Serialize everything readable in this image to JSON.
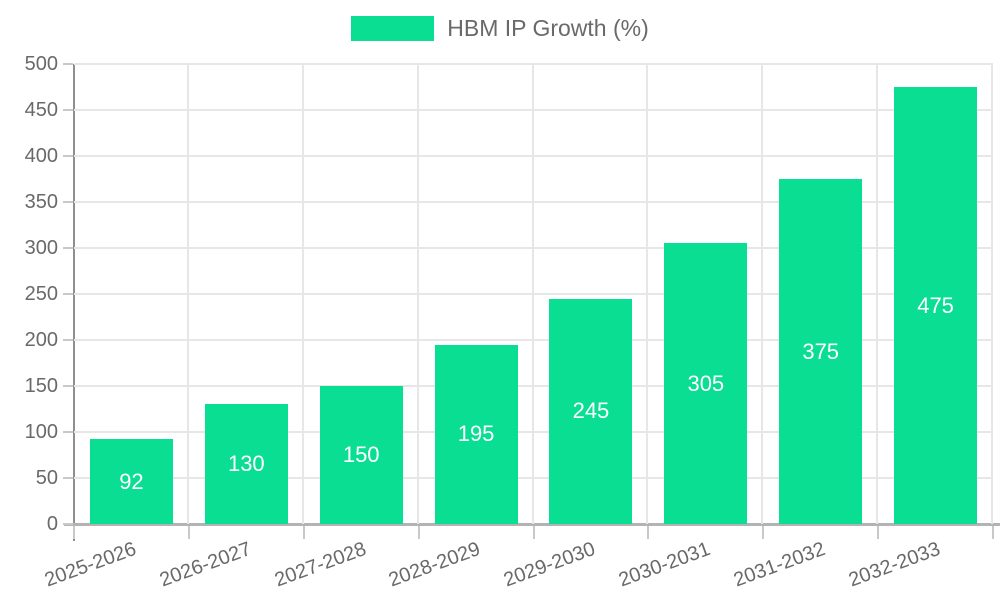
{
  "legend": {
    "label": "HBM IP Growth (%)"
  },
  "colors": {
    "bar": "#0ade93",
    "grid": "#e7e7e7",
    "y_axis_line": "#8f8f8f",
    "x_axis_line": "#b3b3b3",
    "tick": "#c9c9c9",
    "axis_text": "#696969",
    "value_label": "#ffffff",
    "background": "#ffffff"
  },
  "chart_data": {
    "type": "bar",
    "title": "HBM IP Growth (%)",
    "categories": [
      "2025-2026",
      "2026-2027",
      "2027-2028",
      "2028-2029",
      "2029-2030",
      "2030-2031",
      "2031-2032",
      "2032-2033"
    ],
    "values": [
      92,
      130,
      150,
      195,
      245,
      305,
      375,
      475
    ],
    "xlabel": "",
    "ylabel": "",
    "ylim": [
      0,
      500
    ],
    "ytick_step": 50,
    "ytick_labels": [
      "0",
      "50",
      "100",
      "150",
      "200",
      "250",
      "300",
      "350",
      "400",
      "450",
      "500"
    ],
    "grid": true,
    "legend_position": "top-center",
    "value_labels": "inside-center",
    "bar_color": "#0ade93"
  }
}
